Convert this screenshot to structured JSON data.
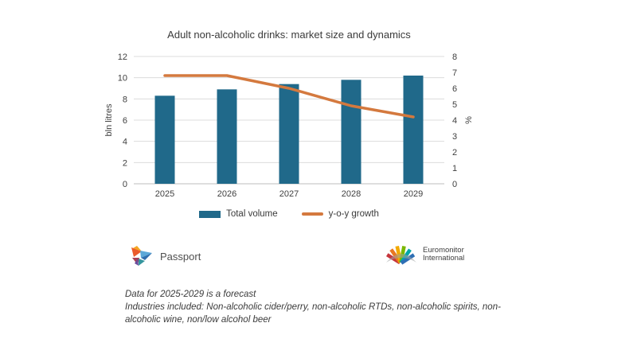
{
  "title": "Adult non-alcoholic drinks: market size and dynamics",
  "chart_data": {
    "type": "bar",
    "subtype": "bar+line dual-axis",
    "categories": [
      "2025",
      "2026",
      "2027",
      "2028",
      "2029"
    ],
    "series": [
      {
        "name": "Total volume",
        "kind": "bar",
        "axis": "left",
        "values": [
          8.3,
          8.9,
          9.4,
          9.8,
          10.2
        ],
        "color": "#20698A"
      },
      {
        "name": "y-o-y growth",
        "kind": "line",
        "axis": "right",
        "values": [
          6.8,
          6.8,
          6.0,
          4.9,
          4.2
        ],
        "color": "#D4793E"
      }
    ],
    "left_axis": {
      "label": "bln litres",
      "min": 0,
      "max": 12,
      "tick_step": 2
    },
    "right_axis": {
      "label": "%",
      "min": 0,
      "max": 8,
      "tick_step": 1
    },
    "grid": true,
    "legend_position": "bottom",
    "gridline_color": "#dcdcdc",
    "baseline_color": "#bdbdbd",
    "tick_color": "#3f3f3f"
  },
  "legend": {
    "items": [
      {
        "label": "Total volume",
        "swatch": "bar",
        "color": "#20698A"
      },
      {
        "label": "y-o-y growth",
        "swatch": "line",
        "color": "#D4793E"
      }
    ]
  },
  "logos": {
    "passport": {
      "label": "Passport",
      "icon": "passport-pinwheel-icon"
    },
    "euromonitor": {
      "label_line1": "Euromonitor",
      "label_line2": "International",
      "icon": "euromonitor-arc-icon"
    }
  },
  "footnotes": {
    "line1": "Data for 2025-2029 is a forecast",
    "line2": "Industries included: Non-alcoholic cider/perry, non-alcoholic RTDs, non-alcoholic spirits, non-alcoholic wine, non/low alcohol beer"
  }
}
